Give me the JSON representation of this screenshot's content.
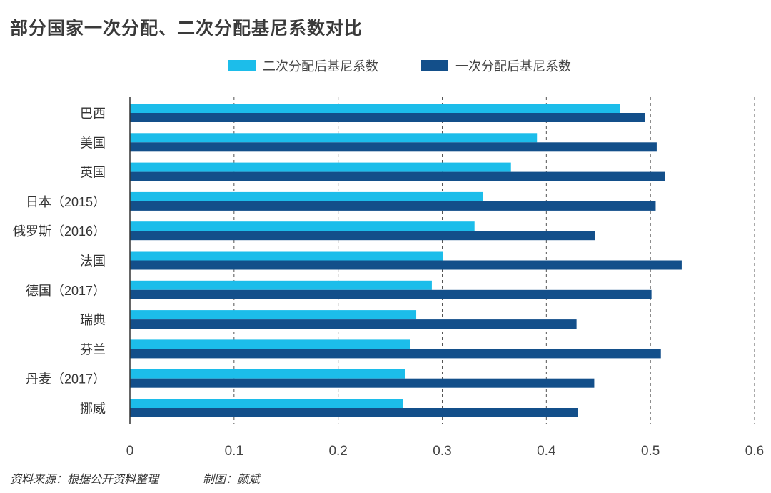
{
  "chart_data": {
    "type": "bar",
    "orientation": "horizontal",
    "title": "部分国家一次分配、二次分配基尼系数对比",
    "categories": [
      "巴西",
      "美国",
      "英国",
      "日本（2015）",
      "俄罗斯（2016）",
      "法国",
      "德国（2017）",
      "瑞典",
      "芬兰",
      "丹麦（2017）",
      "挪威"
    ],
    "series": [
      {
        "name": "二次分配后基尼系数",
        "color": "#1cbdea",
        "values": [
          0.471,
          0.391,
          0.366,
          0.339,
          0.331,
          0.301,
          0.29,
          0.275,
          0.269,
          0.264,
          0.262
        ]
      },
      {
        "name": "一次分配后基尼系数",
        "color": "#134f8a",
        "values": [
          0.495,
          0.506,
          0.514,
          0.505,
          0.447,
          0.53,
          0.501,
          0.429,
          0.51,
          0.446,
          0.43
        ]
      }
    ],
    "xlim": [
      0,
      0.6
    ],
    "xticks": [
      {
        "value": 0,
        "label": "0"
      },
      {
        "value": 0.1,
        "label": "0.1"
      },
      {
        "value": 0.2,
        "label": "0.2"
      },
      {
        "value": 0.3,
        "label": "0.3"
      },
      {
        "value": 0.4,
        "label": "0.4"
      },
      {
        "value": 0.5,
        "label": "0.5"
      },
      {
        "value": 0.6,
        "label": "0.6"
      }
    ],
    "grid": "vertical-dashed",
    "legend_position": "top"
  },
  "footer": {
    "source": "资料来源：根据公开资料整理",
    "credit": "制图：颜斌"
  }
}
